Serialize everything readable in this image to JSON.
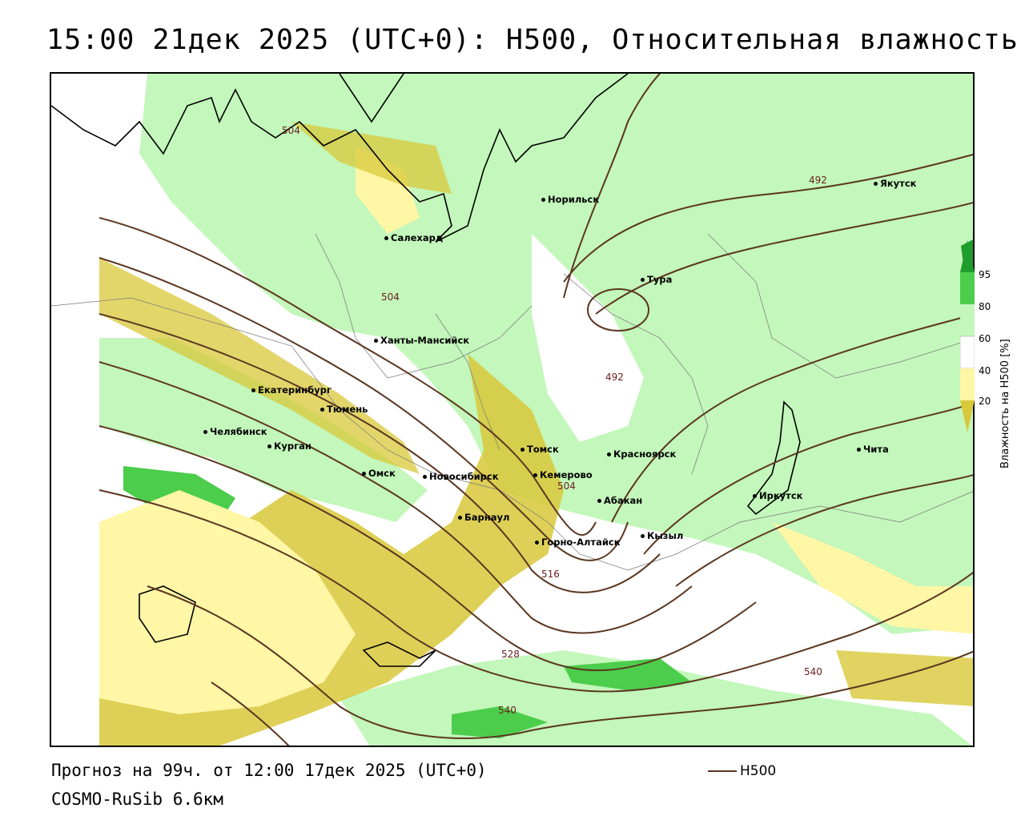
{
  "title": "15:00 21дек 2025 (UTC+0): H500, Относительная влажность",
  "footer": {
    "forecast": "Прогноз на 99ч. от 12:00 17дек 2025 (UTC+0)",
    "model": "COSMO-RuSib 6.6км",
    "legend_label": "H500"
  },
  "colorbar": {
    "title": "Влажность на H500 [%]",
    "ticks": [
      "95",
      "80",
      "60",
      "40",
      "20"
    ],
    "colors": {
      "very_high": "#1e9e2c",
      "high": "#4ccd4c",
      "moderate": "#c3f7bb",
      "neutral": "#ffffff",
      "low": "#fff6a6",
      "very_low": "#d8c83a"
    }
  },
  "contour_color": "#5b3620",
  "contour_labels": {
    "c504_top": "504",
    "c492_east": "492",
    "c504_mid": "504",
    "c492_center": "492",
    "c504_kem": "504",
    "c516": "516",
    "c528": "528",
    "c540_east": "540",
    "c540_south": "540"
  },
  "cities": {
    "norilsk": "Норильск",
    "yakutsk": "Якутск",
    "salekhard": "Салехард",
    "tura": "Тура",
    "khanty": "Ханты-Мансийск",
    "ekaterinburg": "Екатеринбург",
    "tyumen": "Тюмень",
    "chelyabinsk": "Челябинск",
    "kurgan": "Курган",
    "omsk": "Омск",
    "novosibirsk": "Новосибирск",
    "tomsk": "Томск",
    "kemerovo": "Кемерово",
    "krasnoyarsk": "Красноярск",
    "barnaul": "Барнаул",
    "abakan": "Абакан",
    "gorno": "Горно-Алтайск",
    "kyzyl": "Кызыл",
    "irkutsk": "Иркутск",
    "chita": "Чита"
  }
}
